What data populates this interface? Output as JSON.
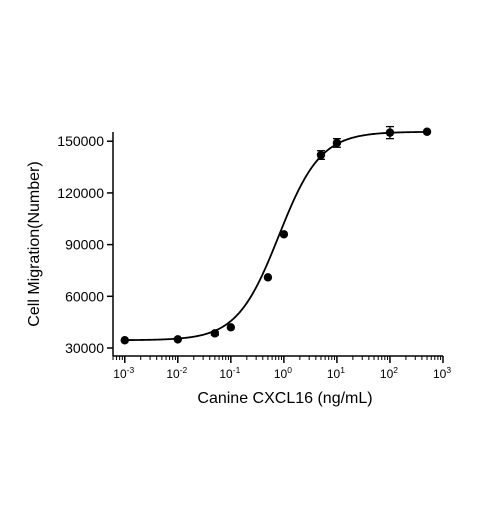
{
  "chart_data": {
    "type": "scatter",
    "title": "",
    "xlabel": "Canine CXCL16 (ng/mL)",
    "ylabel": "Cell Migration(Number)",
    "x_scale": "log10",
    "xlim": [
      0.0006,
      1000
    ],
    "ylim": [
      30000,
      160000
    ],
    "grid": false,
    "legend": "none",
    "x_ticks": [
      {
        "base": "10",
        "exp": "-3"
      },
      {
        "base": "10",
        "exp": "-2"
      },
      {
        "base": "10",
        "exp": "-1"
      },
      {
        "base": "10",
        "exp": "0"
      },
      {
        "base": "10",
        "exp": "1"
      },
      {
        "base": "10",
        "exp": "2"
      },
      {
        "base": "10",
        "exp": "3"
      }
    ],
    "y_ticks": [
      "30000",
      "60000",
      "90000",
      "120000",
      "150000"
    ],
    "series": [
      {
        "x": [
          0.001,
          0.01,
          0.05,
          0.1,
          0.5,
          1,
          5,
          10,
          100,
          500
        ],
        "y": [
          34500,
          35000,
          38500,
          42000,
          71000,
          96000,
          142000,
          149000,
          155000,
          155500
        ],
        "error": [
          0,
          0,
          1000,
          0,
          0,
          0,
          2500,
          2500,
          3500,
          0
        ]
      }
    ],
    "fit": {
      "model": "4PL",
      "bottom": 34500,
      "top": 155500,
      "ec50": 0.8,
      "hill": 1.1
    },
    "colors": {
      "marker": "#000000",
      "line": "#000000",
      "axis": "#000000"
    }
  }
}
